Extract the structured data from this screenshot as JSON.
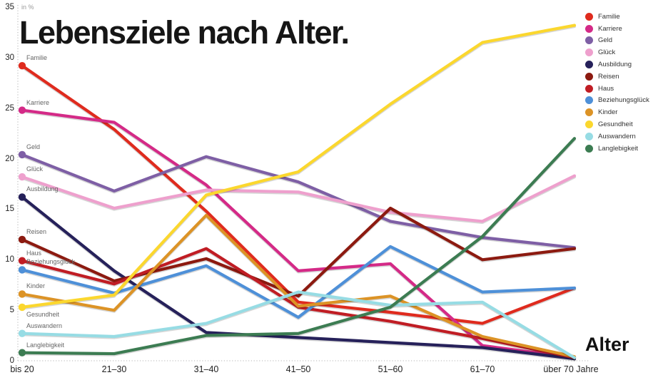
{
  "title": "Lebensziele nach Alter.",
  "unit_label": "in %",
  "x_axis_title": "Alter",
  "chart_data": {
    "type": "line",
    "title": "Lebensziele nach Alter.",
    "ylabel": "in %",
    "xlabel": "Alter",
    "ylim": [
      0,
      35
    ],
    "y_ticks": [
      0,
      5,
      10,
      15,
      20,
      25,
      30,
      35
    ],
    "grid": false,
    "legend_position": "top-right",
    "categories": [
      "bis 20",
      "21–30",
      "31–40",
      "41–50",
      "51–60",
      "61–70",
      "über 70 Jahre"
    ],
    "series": [
      {
        "name": "Familie",
        "color": "#df2b1e",
        "values": [
          29.2,
          22.9,
          14.8,
          5.8,
          4.8,
          3.7,
          7.2
        ]
      },
      {
        "name": "Karriere",
        "color": "#d42a87",
        "values": [
          24.8,
          23.6,
          17.4,
          8.9,
          9.6,
          1.5,
          0.3
        ]
      },
      {
        "name": "Geld",
        "color": "#7e5fa5",
        "values": [
          20.4,
          16.8,
          20.2,
          17.7,
          13.8,
          12.2,
          11.2
        ]
      },
      {
        "name": "Glück",
        "color": "#eea0cd",
        "values": [
          18.2,
          15.1,
          16.9,
          16.7,
          14.7,
          13.8,
          18.3
        ]
      },
      {
        "name": "Ausbildung",
        "color": "#26215a",
        "values": [
          16.2,
          8.9,
          2.8,
          2.3,
          1.8,
          1.3,
          0.2
        ]
      },
      {
        "name": "Reisen",
        "color": "#8c1a10",
        "values": [
          12.0,
          7.9,
          10.1,
          6.4,
          15.1,
          10.0,
          11.1
        ]
      },
      {
        "name": "Haus",
        "color": "#c01d24",
        "values": [
          9.9,
          7.6,
          11.1,
          5.3,
          3.9,
          2.2,
          0.3
        ]
      },
      {
        "name": "Beziehungsglück",
        "color": "#4e90d8",
        "values": [
          9.0,
          6.7,
          9.4,
          4.3,
          11.3,
          6.8,
          7.2
        ]
      },
      {
        "name": "Kinder",
        "color": "#dc9326",
        "values": [
          6.6,
          5.0,
          14.4,
          5.4,
          6.4,
          2.4,
          0.4
        ]
      },
      {
        "name": "Gesundheit",
        "color": "#fbd72e",
        "values": [
          5.3,
          6.5,
          16.4,
          18.7,
          25.4,
          31.5,
          33.2
        ]
      },
      {
        "name": "Auswandern",
        "color": "#97dce4",
        "values": [
          2.7,
          2.4,
          3.7,
          6.8,
          5.5,
          5.8,
          0.3
        ]
      },
      {
        "name": "Langlebigkeit",
        "color": "#3c7c52",
        "values": [
          0.8,
          0.7,
          2.5,
          2.7,
          5.3,
          12.3,
          22.0
        ]
      }
    ]
  }
}
